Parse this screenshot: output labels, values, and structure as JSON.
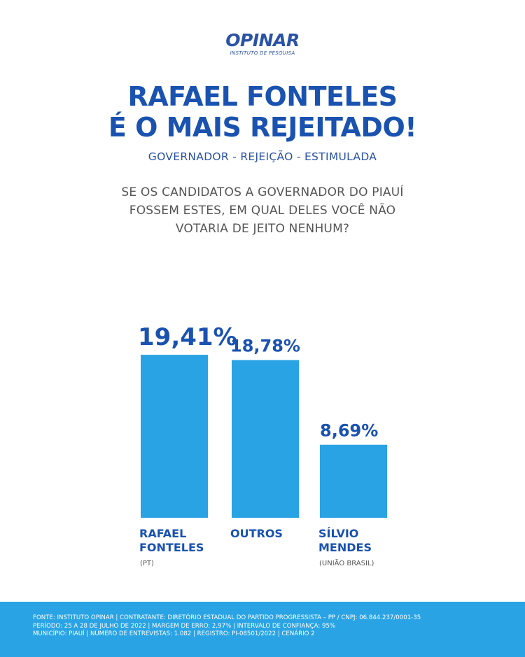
{
  "logo": {
    "name": "OPINAR",
    "subtitle": "INSTITUTO DE PESQUISA"
  },
  "headline": {
    "line1": "RAFAEL FONTELES",
    "line2": "É O MAIS REJEITADO!"
  },
  "subtitle": "GOVERNADOR - REJEIÇÃO - ESTIMULADA",
  "question": {
    "line1": "SE OS CANDIDATOS A GOVERNADOR DO PIAUÍ",
    "line2": "FOSSEM ESTES, EM QUAL DELES VOCÊ NÃO",
    "line3": "VOTARIA DE JEITO NENHUM?"
  },
  "chart_data": {
    "type": "bar",
    "title": "GOVERNADOR - REJEIÇÃO - ESTIMULADA",
    "categories": [
      "RAFAEL FONTELES",
      "OUTROS",
      "SÍLVIO MENDES"
    ],
    "category_lines": [
      [
        "RAFAEL",
        "FONTELES"
      ],
      [
        "OUTROS"
      ],
      [
        "SÍLVIO",
        "MENDES"
      ]
    ],
    "parties": [
      "(PT)",
      "",
      "(UNIÃO BRASIL)"
    ],
    "values": [
      19.41,
      18.78,
      8.69
    ],
    "value_labels": [
      "19,41%",
      "18,78%",
      "8,69%"
    ],
    "unit": "%",
    "xlabel": "",
    "ylabel": "",
    "grid": false,
    "colors": {
      "bar": "#29a3e4",
      "text": "#1a52b0"
    }
  },
  "footer": {
    "line1": "FONTE: INSTITUTO OPINAR | CONTRATANTE: DIRETÓRIO ESTADUAL DO PARTIDO PROGRESSISTA – PP / CNPJ: 06.844.237/0001-35",
    "line2": "PERÍODO: 25 A 28 DE JULHO DE 2022 | MARGEM DE ERRO: 2,97% | INTERVALO DE CONFIANÇA: 95%",
    "line3": "MUNICÍPIO: PIAUÍ | NÚMERO DE ENTREVISTAS: 1.082 | REGISTRO: PI-08501/2022 | CENÁRIO 2"
  }
}
